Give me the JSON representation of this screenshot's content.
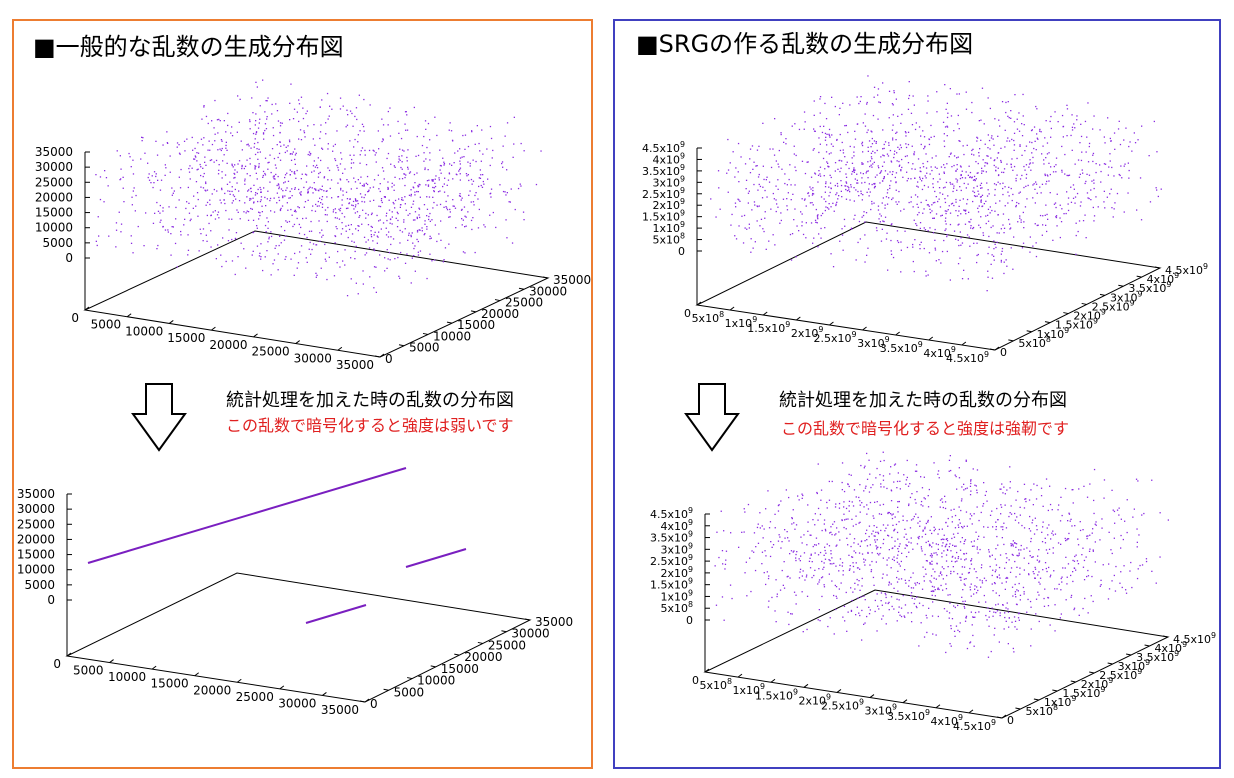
{
  "panels": [
    {
      "title": "■一般的な乱数の生成分布図",
      "caption": "統計処理を加えた時の乱数の分布図",
      "note": "この乱数で暗号化すると強度は弱いです",
      "plots": [
        {
          "z_ticks": [
            "35000",
            "30000",
            "25000",
            "20000",
            "15000",
            "10000",
            "5000",
            "0"
          ],
          "x_ticks": [
            "0",
            "5000",
            "10000",
            "15000",
            "20000",
            "25000",
            "30000",
            "35000"
          ],
          "y_ticks": [
            "0",
            "5000",
            "10000",
            "15000",
            "20000",
            "25000",
            "30000",
            "35000"
          ]
        },
        {
          "z_ticks": [
            "35000",
            "30000",
            "25000",
            "20000",
            "15000",
            "10000",
            "5000",
            "0"
          ],
          "x_ticks": [
            "0",
            "5000",
            "10000",
            "15000",
            "20000",
            "25000",
            "30000",
            "35000"
          ],
          "y_ticks": [
            "0",
            "5000",
            "10000",
            "15000",
            "20000",
            "25000",
            "30000",
            "35000"
          ]
        }
      ]
    },
    {
      "title": "■SRGの作る乱数の生成分布図",
      "caption": "統計処理を加えた時の乱数の分布図",
      "note": "この乱数で暗号化すると強度は強靭です",
      "plots": [
        {
          "z_ticks": [
            {
              "m": "4.5x10",
              "e": "9"
            },
            {
              "m": "4x10",
              "e": "9"
            },
            {
              "m": "3.5x10",
              "e": "9"
            },
            {
              "m": "3x10",
              "e": "9"
            },
            {
              "m": "2.5x10",
              "e": "9"
            },
            {
              "m": "2x10",
              "e": "9"
            },
            {
              "m": "1.5x10",
              "e": "9"
            },
            {
              "m": "1x10",
              "e": "9"
            },
            {
              "m": "5x10",
              "e": "8"
            },
            {
              "m": "0"
            }
          ],
          "x_ticks": [
            {
              "m": "0"
            },
            {
              "m": "5x10",
              "e": "8"
            },
            {
              "m": "1x10",
              "e": "9"
            },
            {
              "m": "1.5x10",
              "e": "9"
            },
            {
              "m": "2x10",
              "e": "9"
            },
            {
              "m": "2.5x10",
              "e": "9"
            },
            {
              "m": "3x10",
              "e": "9"
            },
            {
              "m": "3.5x10",
              "e": "9"
            },
            {
              "m": "4x10",
              "e": "9"
            },
            {
              "m": "4.5x10",
              "e": "9"
            }
          ],
          "y_ticks": [
            {
              "m": "0"
            },
            {
              "m": "5x10",
              "e": "8"
            },
            {
              "m": "1x10",
              "e": "9"
            },
            {
              "m": "1.5x10",
              "e": "9"
            },
            {
              "m": "2x10",
              "e": "9"
            },
            {
              "m": "2.5x10",
              "e": "9"
            },
            {
              "m": "3x10",
              "e": "9"
            },
            {
              "m": "3.5x10",
              "e": "9"
            },
            {
              "m": "4x10",
              "e": "9"
            },
            {
              "m": "4.5x10",
              "e": "9"
            }
          ]
        },
        {
          "z_ticks": [
            {
              "m": "4.5x10",
              "e": "9"
            },
            {
              "m": "4x10",
              "e": "9"
            },
            {
              "m": "3.5x10",
              "e": "9"
            },
            {
              "m": "3x10",
              "e": "9"
            },
            {
              "m": "2.5x10",
              "e": "9"
            },
            {
              "m": "2x10",
              "e": "9"
            },
            {
              "m": "1.5x10",
              "e": "9"
            },
            {
              "m": "1x10",
              "e": "9"
            },
            {
              "m": "5x10",
              "e": "8"
            },
            {
              "m": "0"
            }
          ],
          "x_ticks": [
            {
              "m": "0"
            },
            {
              "m": "5x10",
              "e": "8"
            },
            {
              "m": "1x10",
              "e": "9"
            },
            {
              "m": "1.5x10",
              "e": "9"
            },
            {
              "m": "2x10",
              "e": "9"
            },
            {
              "m": "2.5x10",
              "e": "9"
            },
            {
              "m": "3x10",
              "e": "9"
            },
            {
              "m": "3.5x10",
              "e": "9"
            },
            {
              "m": "4x10",
              "e": "9"
            },
            {
              "m": "4.5x10",
              "e": "9"
            }
          ],
          "y_ticks": [
            {
              "m": "0"
            },
            {
              "m": "5x10",
              "e": "8"
            },
            {
              "m": "1x10",
              "e": "9"
            },
            {
              "m": "1.5x10",
              "e": "9"
            },
            {
              "m": "2x10",
              "e": "9"
            },
            {
              "m": "2.5x10",
              "e": "9"
            },
            {
              "m": "3x10",
              "e": "9"
            },
            {
              "m": "3.5x10",
              "e": "9"
            },
            {
              "m": "4x10",
              "e": "9"
            },
            {
              "m": "4.5x10",
              "e": "9"
            }
          ]
        }
      ]
    }
  ]
}
